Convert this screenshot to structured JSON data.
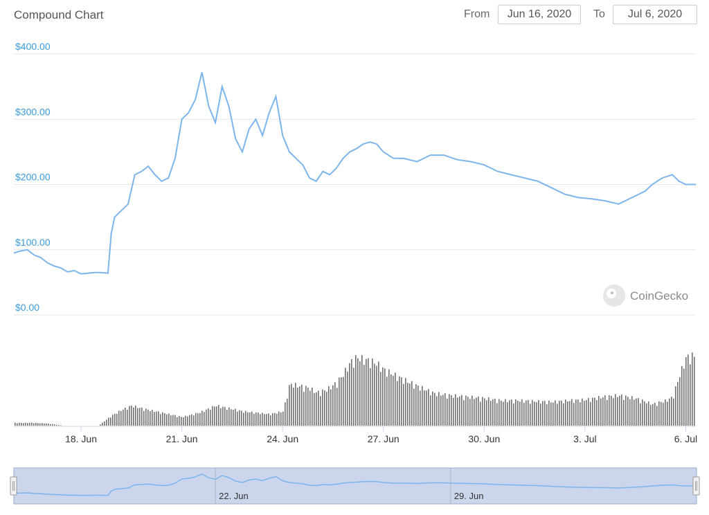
{
  "header": {
    "title": "Compound Chart",
    "from_label": "From",
    "from_date": "Jun 16, 2020",
    "to_label": "To",
    "to_date": "Jul 6, 2020"
  },
  "watermark": "CoinGecko",
  "colors": {
    "price_line": "#7cb5ec",
    "volume_bars": "#707070",
    "navigator_fill": "#cbd6ec",
    "axis_text": "#3a9bdc"
  },
  "chart_data": {
    "type": "line",
    "price_series": {
      "x": [
        16.0,
        16.2,
        16.4,
        16.6,
        16.8,
        17.0,
        17.2,
        17.4,
        17.6,
        17.8,
        18.0,
        18.2,
        18.4,
        18.6,
        18.8,
        18.9,
        19.0,
        19.2,
        19.4,
        19.6,
        19.8,
        20.0,
        20.2,
        20.4,
        20.6,
        20.8,
        21.0,
        21.2,
        21.4,
        21.6,
        21.8,
        22.0,
        22.2,
        22.4,
        22.6,
        22.8,
        23.0,
        23.2,
        23.4,
        23.6,
        23.8,
        24.0,
        24.2,
        24.4,
        24.6,
        24.8,
        25.0,
        25.2,
        25.4,
        25.6,
        25.8,
        26.0,
        26.2,
        26.4,
        26.6,
        26.8,
        27.0,
        27.3,
        27.6,
        28.0,
        28.4,
        28.8,
        29.2,
        29.6,
        30.0,
        30.4,
        30.8,
        31.2,
        31.6,
        32.0,
        32.4,
        32.8,
        33.2,
        33.6,
        34.0,
        34.4,
        34.8,
        35.0,
        35.3,
        35.6,
        35.8,
        36.0,
        36.3
      ],
      "values": [
        95,
        98,
        100,
        92,
        88,
        80,
        75,
        72,
        66,
        68,
        63,
        64,
        65,
        65,
        64,
        125,
        150,
        160,
        170,
        215,
        220,
        228,
        215,
        205,
        210,
        240,
        300,
        310,
        330,
        372,
        320,
        295,
        350,
        320,
        270,
        250,
        285,
        300,
        275,
        310,
        335,
        275,
        250,
        240,
        230,
        210,
        205,
        220,
        215,
        225,
        240,
        250,
        255,
        262,
        265,
        262,
        250,
        240,
        240,
        235,
        245,
        245,
        238,
        235,
        230,
        220,
        215,
        210,
        205,
        195,
        185,
        180,
        178,
        175,
        170,
        180,
        190,
        200,
        210,
        215,
        205,
        200,
        200
      ],
      "ylim": [
        0,
        400
      ],
      "yticks": [
        "$400.00",
        "$300.00",
        "$200.00",
        "$100.00",
        "$0.00"
      ],
      "ytick_values": [
        400,
        300,
        200,
        100,
        0
      ]
    },
    "volume_series": {
      "x": [
        16.0,
        16.6,
        17.0,
        17.5,
        18.0,
        18.5,
        18.9,
        19.2,
        19.5,
        19.8,
        20.2,
        20.6,
        21.0,
        21.5,
        22.0,
        22.4,
        22.8,
        23.2,
        23.6,
        24.0,
        24.2,
        24.5,
        24.8,
        25.0,
        25.3,
        25.6,
        25.8,
        26.0,
        26.2,
        26.4,
        26.6,
        26.8,
        27.0,
        27.5,
        28.0,
        28.5,
        29.0,
        29.5,
        30.0,
        30.5,
        31.0,
        31.5,
        32.0,
        32.5,
        33.0,
        33.5,
        34.0,
        34.5,
        35.0,
        35.4,
        35.6,
        35.8,
        36.0,
        36.3
      ],
      "values": [
        4,
        4,
        3,
        0,
        0,
        0,
        14,
        22,
        28,
        24,
        20,
        16,
        12,
        18,
        28,
        24,
        20,
        18,
        16,
        20,
        58,
        55,
        52,
        46,
        50,
        60,
        72,
        88,
        95,
        92,
        90,
        86,
        78,
        66,
        55,
        45,
        42,
        40,
        38,
        35,
        35,
        34,
        33,
        35,
        36,
        40,
        42,
        38,
        30,
        35,
        40,
        70,
        95,
        98
      ]
    },
    "xticks": [
      "18. Jun",
      "21. Jun",
      "24. Jun",
      "27. Jun",
      "30. Jun",
      "3. Jul",
      "6. Jul"
    ],
    "xtick_values": [
      18,
      21,
      24,
      27,
      30,
      33,
      36
    ],
    "navigator_ticks": [
      "22. Jun",
      "29. Jun"
    ],
    "navigator_tick_values": [
      22,
      29
    ]
  }
}
